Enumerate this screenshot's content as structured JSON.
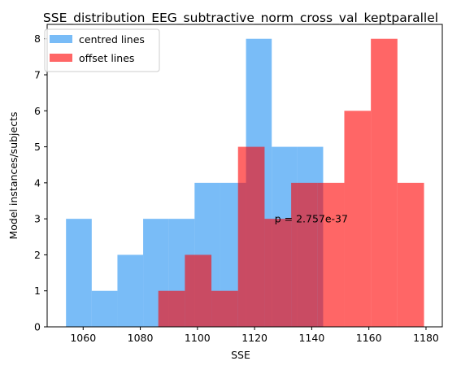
{
  "chart_data": {
    "type": "histogram",
    "title": "SSE_distribution_EEG_subtractive_norm_cross_val_keptparallel",
    "xlabel": "SSE",
    "ylabel": "Model instances/subjects",
    "xlim": [
      1047.4,
      1185.7
    ],
    "ylim": [
      0,
      8.4
    ],
    "xticks": [
      1060,
      1080,
      1100,
      1120,
      1140,
      1160,
      1180
    ],
    "yticks": [
      0,
      1,
      2,
      3,
      4,
      5,
      6,
      7,
      8
    ],
    "legend_position": "upper-left",
    "annotation": {
      "text": "p = 2.757e-37",
      "x": 1127,
      "y": 3
    },
    "series": [
      {
        "name": "centred lines",
        "color": "#1f8ff2",
        "alpha": 0.6,
        "bin_edges": [
          1054.0,
          1063.0,
          1072.0,
          1081.0,
          1090.0,
          1099.0,
          1108.0,
          1117.0,
          1126.0,
          1135.0,
          1144.0
        ],
        "counts": [
          3,
          1,
          2,
          3,
          3,
          4,
          4,
          8,
          5,
          5
        ]
      },
      {
        "name": "offset lines",
        "color": "#ff0000",
        "alpha": 0.6,
        "bin_edges": [
          1086.3,
          1095.6,
          1104.9,
          1114.2,
          1123.5,
          1132.8,
          1142.1,
          1151.4,
          1160.7,
          1170.0,
          1179.3
        ],
        "counts": [
          1,
          2,
          1,
          5,
          3,
          4,
          4,
          6,
          8,
          4
        ]
      }
    ]
  }
}
